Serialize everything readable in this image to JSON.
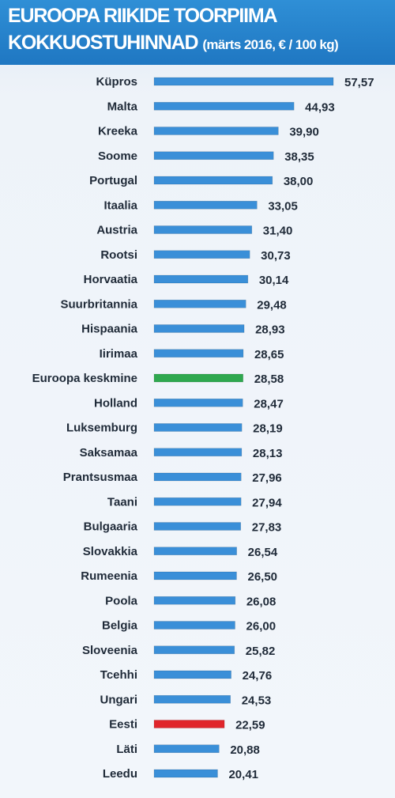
{
  "header": {
    "title_line1": "EUROOPA RIIKIDE TOORPIIMA",
    "title_line2": "KOKKUOSTUHINNAD",
    "subtitle": "(märts 2016, € / 100 kg)"
  },
  "colors": {
    "header_blue": "#2283cb",
    "bar_default": "#3a8fd8",
    "bar_average": "#2fa84f",
    "bar_estonia": "#e0252b"
  },
  "chart_data": {
    "type": "bar",
    "orientation": "horizontal",
    "title": "EUROOPA RIIKIDE TOORPIIMA KOKKUOSTUHINNAD",
    "subtitle": "(märts 2016, € / 100 kg)",
    "xlabel": "",
    "ylabel": "",
    "xlim": [
      0,
      57.57
    ],
    "grid": false,
    "categories": [
      "Küpros",
      "Malta",
      "Kreeka",
      "Soome",
      "Portugal",
      "Itaalia",
      "Austria",
      "Rootsi",
      "Horvaatia",
      "Suurbritannia",
      "Hispaania",
      "Iirimaa",
      "Euroopa keskmine",
      "Holland",
      "Luksemburg",
      "Saksamaa",
      "Prantsusmaa",
      "Taani",
      "Bulgaaria",
      "Slovakkia",
      "Rumeenia",
      "Poola",
      "Belgia",
      "Sloveenia",
      "Tcehhi",
      "Ungari",
      "Eesti",
      "Läti",
      "Leedu"
    ],
    "values": [
      57.57,
      44.93,
      39.9,
      38.35,
      38.0,
      33.05,
      31.4,
      30.73,
      30.14,
      29.48,
      28.93,
      28.65,
      28.58,
      28.47,
      28.19,
      28.13,
      27.96,
      27.94,
      27.83,
      26.54,
      26.5,
      26.08,
      26.0,
      25.82,
      24.76,
      24.53,
      22.59,
      20.88,
      20.41
    ],
    "value_labels": [
      "57,57",
      "44,93",
      "39,90",
      "38,35",
      "38,00",
      "33,05",
      "31,40",
      "30,73",
      "30,14",
      "29,48",
      "28,93",
      "28,65",
      "28,58",
      "28,47",
      "28,19",
      "28,13",
      "27,96",
      "27,94",
      "27,83",
      "26,54",
      "26,50",
      "26,08",
      "26,00",
      "25,82",
      "24,76",
      "24,53",
      "22,59",
      "20,88",
      "20,41"
    ],
    "highlights": {
      "Euroopa keskmine": "#2fa84f",
      "Eesti": "#e0252b"
    }
  }
}
